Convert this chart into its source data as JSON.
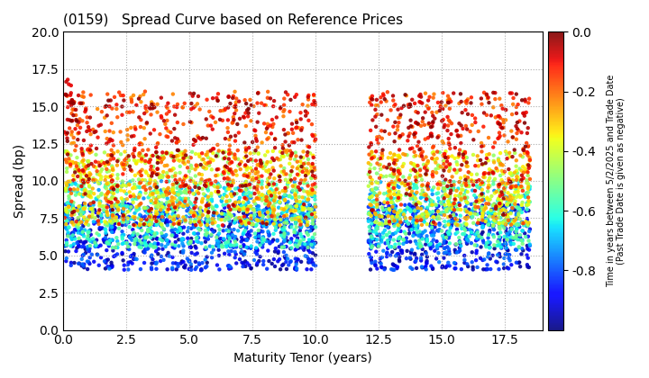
{
  "title": "(0159)   Spread Curve based on Reference Prices",
  "xlabel": "Maturity Tenor (years)",
  "ylabel": "Spread (bp)",
  "colorbar_label": "Time in years between 5/2/2025 and Trade Date\n(Past Trade Date is given as negative)",
  "xlim": [
    0,
    19
  ],
  "ylim": [
    0,
    20
  ],
  "xticks": [
    0.0,
    2.5,
    5.0,
    7.5,
    10.0,
    12.5,
    15.0,
    17.5
  ],
  "yticks": [
    0.0,
    2.5,
    5.0,
    7.5,
    10.0,
    12.5,
    15.0,
    17.5,
    20.0
  ],
  "cmap": "jet",
  "vmin": -1.0,
  "vmax": 0.0,
  "colorbar_ticks": [
    0.0,
    -0.2,
    -0.4,
    -0.6,
    -0.8
  ],
  "background_color": "#ffffff",
  "grid_color": "#aaaaaa",
  "seed": 42,
  "gap_start": 10.5,
  "gap_end": 12.0,
  "region1_xmin": 0.05,
  "region1_xmax": 10.0,
  "region2_xmin": 12.1,
  "region2_xmax": 18.5
}
